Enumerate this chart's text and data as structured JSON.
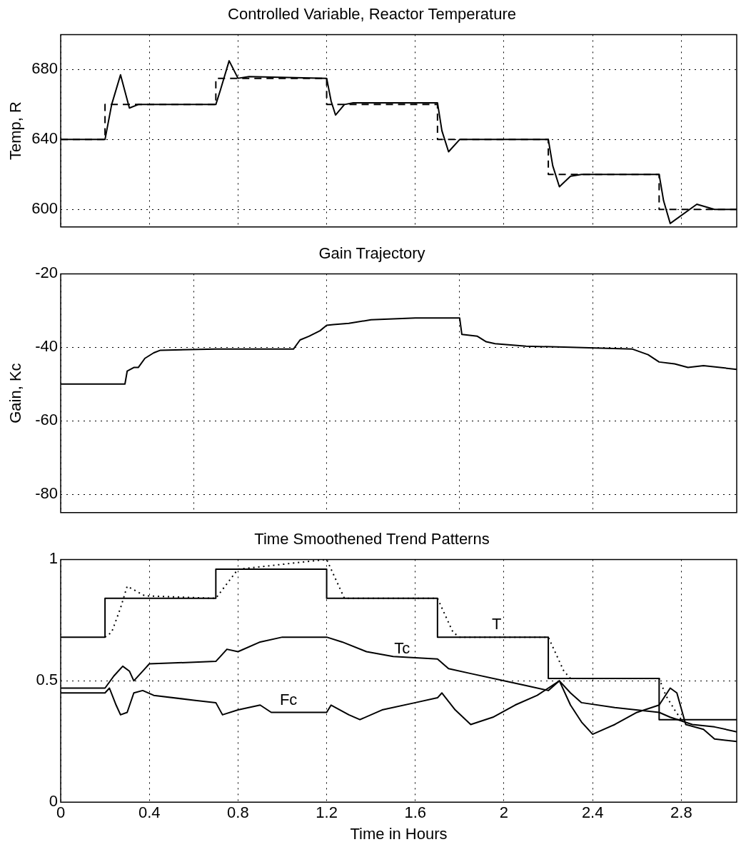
{
  "chart_data": [
    {
      "type": "line",
      "title": "Controlled Variable, Reactor Temperature",
      "ylabel": "Temp, R",
      "xlim": [
        0,
        3.05
      ],
      "xticks": [
        0,
        0.4,
        0.8,
        1.2,
        1.6,
        2,
        2.4,
        2.8
      ],
      "ylim": [
        590,
        700
      ],
      "yticks": [
        600,
        640,
        680
      ],
      "grid": true,
      "tick_labels": "y",
      "series": [
        {
          "type": "line",
          "color": "#000000",
          "line_style": "dashed",
          "x": [
            0,
            0.2,
            0.2,
            0.7,
            0.7,
            1.2,
            1.2,
            1.7,
            1.7,
            2.2,
            2.2,
            2.7,
            2.7,
            3.05
          ],
          "values": [
            640,
            640,
            660,
            660,
            675,
            675,
            660,
            660,
            640,
            640,
            620,
            620,
            600,
            600
          ]
        },
        {
          "type": "line",
          "color": "#000000",
          "line_style": "solid",
          "x": [
            0,
            0.2,
            0.23,
            0.27,
            0.31,
            0.35,
            0.7,
            0.72,
            0.76,
            0.8,
            0.85,
            1.2,
            1.22,
            1.24,
            1.28,
            1.32,
            1.7,
            1.72,
            1.75,
            1.8,
            1.85,
            2.2,
            2.22,
            2.25,
            2.3,
            2.35,
            2.7,
            2.72,
            2.75,
            2.87,
            2.95,
            3.05
          ],
          "values": [
            640,
            640,
            660,
            677,
            658,
            660,
            660,
            668,
            685,
            675,
            676,
            675,
            662,
            654,
            660,
            661,
            661,
            645,
            633,
            640,
            640,
            640,
            625,
            613,
            619,
            620,
            620,
            605,
            592,
            603,
            600,
            600
          ]
        }
      ]
    },
    {
      "type": "line",
      "title": "Gain Trajectory",
      "ylabel": "Gain, Kc",
      "xlim": [
        0,
        3.05
      ],
      "xticks": [
        0,
        0.6,
        1.2,
        1.8,
        2.4
      ],
      "ylim": [
        -85,
        -20
      ],
      "yticks": [
        -20,
        -40,
        -60,
        -80
      ],
      "grid": true,
      "tick_labels": "y",
      "series": [
        {
          "type": "line",
          "color": "#000000",
          "x": [
            0,
            0.29,
            0.3,
            0.33,
            0.35,
            0.38,
            0.42,
            0.45,
            0.7,
            1.05,
            1.08,
            1.12,
            1.17,
            1.2,
            1.23,
            1.3,
            1.4,
            1.6,
            1.8,
            1.81,
            1.88,
            1.92,
            1.96,
            2.1,
            2.3,
            2.58,
            2.65,
            2.7,
            2.77,
            2.83,
            2.9,
            3.05
          ],
          "values": [
            -50,
            -50,
            -46.5,
            -45.5,
            -45.5,
            -43,
            -41.5,
            -40.8,
            -40.5,
            -40.5,
            -38,
            -37,
            -35.5,
            -34,
            -33.8,
            -33.5,
            -32.5,
            -32,
            -32,
            -36.5,
            -37,
            -38.5,
            -39,
            -39.7,
            -40,
            -40.5,
            -42,
            -44,
            -44.5,
            -45.5,
            -45,
            -46
          ]
        }
      ]
    },
    {
      "type": "line",
      "title": "Time Smoothened Trend Patterns",
      "xlabel": "Time in Hours",
      "xlim": [
        0,
        3.05
      ],
      "xticks": [
        0,
        0.4,
        0.8,
        1.2,
        1.6,
        2,
        2.4,
        2.8
      ],
      "ylim": [
        0,
        1
      ],
      "yticks": [
        0,
        0.5,
        1
      ],
      "grid": true,
      "series": [
        {
          "type": "line",
          "name": "T",
          "color": "#000000",
          "line_style": "solid",
          "x": [
            0,
            0.2,
            0.2,
            0.7,
            0.7,
            1.2,
            1.2,
            1.7,
            1.7,
            2.2,
            2.2,
            2.7,
            2.7,
            3.05
          ],
          "values": [
            0.68,
            0.68,
            0.84,
            0.84,
            0.96,
            0.96,
            0.84,
            0.84,
            0.68,
            0.68,
            0.51,
            0.51,
            0.34,
            0.34
          ]
        },
        {
          "type": "line",
          "color": "#000000",
          "line_style": "dotted",
          "x": [
            0.2,
            0.23,
            0.27,
            0.3,
            0.38,
            0.7,
            0.75,
            0.8,
            1.2,
            1.24,
            1.28,
            1.7,
            1.73,
            1.77,
            1.8,
            2.2,
            2.23,
            2.27,
            2.3,
            2.7,
            2.73,
            2.77,
            2.8
          ],
          "values": [
            0.68,
            0.7,
            0.8,
            0.89,
            0.85,
            0.84,
            0.9,
            0.96,
            1.0,
            0.92,
            0.84,
            0.84,
            0.78,
            0.7,
            0.68,
            0.68,
            0.62,
            0.54,
            0.51,
            0.51,
            0.44,
            0.38,
            0.34
          ]
        },
        {
          "type": "line",
          "name": "Tc",
          "color": "#000000",
          "line_style": "solid",
          "x": [
            0,
            0.2,
            0.24,
            0.28,
            0.31,
            0.33,
            0.38,
            0.4,
            0.7,
            0.72,
            0.75,
            0.8,
            0.9,
            1.0,
            1.2,
            1.27,
            1.38,
            1.5,
            1.7,
            1.75,
            1.85,
            2.0,
            2.1,
            2.2,
            2.25,
            2.3,
            2.35,
            2.5,
            2.7,
            2.75,
            2.85,
            2.95,
            3.05
          ],
          "values": [
            0.47,
            0.47,
            0.52,
            0.56,
            0.54,
            0.5,
            0.55,
            0.57,
            0.58,
            0.6,
            0.63,
            0.62,
            0.66,
            0.68,
            0.68,
            0.66,
            0.62,
            0.6,
            0.59,
            0.55,
            0.53,
            0.5,
            0.48,
            0.46,
            0.5,
            0.45,
            0.41,
            0.39,
            0.37,
            0.35,
            0.32,
            0.31,
            0.29
          ]
        },
        {
          "type": "line",
          "name": "Fc",
          "color": "#000000",
          "line_style": "solid",
          "x": [
            0,
            0.2,
            0.22,
            0.25,
            0.27,
            0.3,
            0.33,
            0.37,
            0.42,
            0.6,
            0.7,
            0.73,
            0.8,
            0.9,
            0.95,
            1.2,
            1.22,
            1.3,
            1.35,
            1.45,
            1.6,
            1.7,
            1.72,
            1.78,
            1.85,
            1.95,
            2.05,
            2.15,
            2.2,
            2.25,
            2.3,
            2.35,
            2.4,
            2.5,
            2.6,
            2.7,
            2.75,
            2.78,
            2.82,
            2.9,
            2.95,
            3.05
          ],
          "values": [
            0.45,
            0.45,
            0.47,
            0.4,
            0.36,
            0.37,
            0.45,
            0.46,
            0.44,
            0.42,
            0.41,
            0.36,
            0.38,
            0.4,
            0.37,
            0.37,
            0.4,
            0.36,
            0.34,
            0.38,
            0.41,
            0.43,
            0.45,
            0.38,
            0.32,
            0.35,
            0.4,
            0.44,
            0.47,
            0.5,
            0.4,
            0.33,
            0.28,
            0.32,
            0.37,
            0.4,
            0.47,
            0.45,
            0.32,
            0.3,
            0.26,
            0.25
          ]
        }
      ]
    }
  ]
}
